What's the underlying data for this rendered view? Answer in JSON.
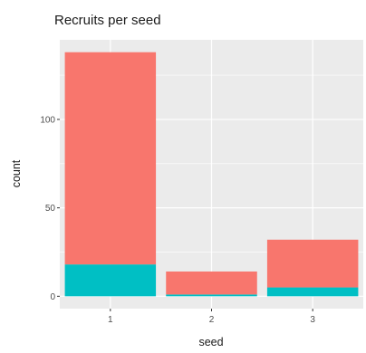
{
  "chart_data": {
    "type": "bar",
    "stacked": true,
    "title": "Recruits per seed",
    "xlabel": "seed",
    "ylabel": "count",
    "categories": [
      "1",
      "2",
      "3"
    ],
    "series": [
      {
        "color": "#F8766D",
        "values": [
          120,
          13,
          27
        ]
      },
      {
        "color": "#00BFC4",
        "values": [
          18,
          1,
          5
        ]
      }
    ],
    "ylim": [
      -7,
      145
    ],
    "yticks": [
      0,
      50,
      100
    ],
    "grid": true,
    "legend": "none",
    "panel_background": "#EBEBEB"
  }
}
